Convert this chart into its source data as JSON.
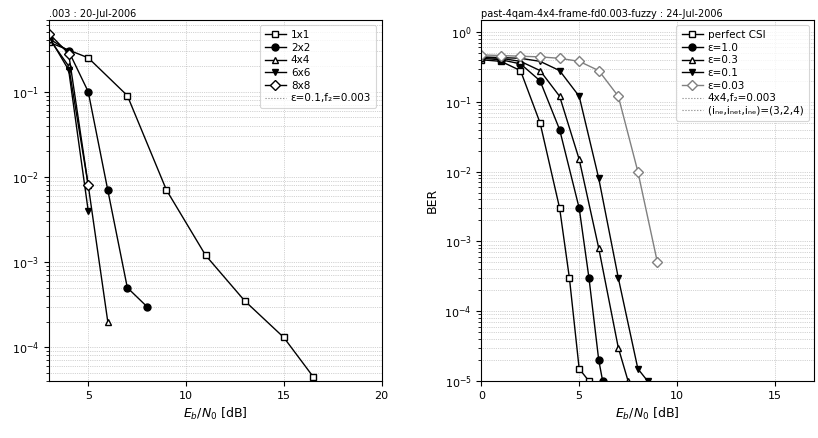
{
  "left_title": ".003 : 20-Jul-2006",
  "right_title": "past-4qam-4x4-frame-fd0.003-fuzzy : 24-Jul-2006",
  "xlabel_left": "$E_b/N_0$ [dB]",
  "xlabel_right": "$E_b/N_0$ [dB]",
  "ylabel": "BER",
  "left_xlim": [
    3,
    20
  ],
  "left_ylim": [
    4e-05,
    0.7
  ],
  "right_xlim": [
    0,
    17
  ],
  "right_ylim": [
    1e-05,
    1.5
  ],
  "left_curves": {
    "1x1": {
      "x": [
        3,
        5,
        7,
        9,
        11,
        13,
        15,
        16.5
      ],
      "y": [
        0.38,
        0.25,
        0.09,
        0.007,
        0.0012,
        0.00035,
        0.00013,
        4.5e-05
      ],
      "marker": "s",
      "fillstyle": "none",
      "linestyle": "-"
    },
    "2x2": {
      "x": [
        3,
        4,
        5,
        6,
        7,
        8
      ],
      "y": [
        0.42,
        0.3,
        0.1,
        0.007,
        0.0005,
        0.0003
      ],
      "marker": "o",
      "fillstyle": "full",
      "linestyle": "-"
    },
    "4x4": {
      "x": [
        3,
        4,
        5,
        6
      ],
      "y": [
        0.42,
        0.2,
        0.008,
        0.0002
      ],
      "marker": "^",
      "fillstyle": "none",
      "linestyle": "-"
    },
    "6x6": {
      "x": [
        3,
        4,
        5
      ],
      "y": [
        0.44,
        0.18,
        0.004
      ],
      "marker": "v",
      "fillstyle": "full",
      "linestyle": "-"
    },
    "8x8": {
      "x": [
        3,
        4,
        5
      ],
      "y": [
        0.48,
        0.28,
        0.008
      ],
      "marker": "D",
      "fillstyle": "none",
      "linestyle": "-"
    }
  },
  "left_legend_extra": "ε=0.1,f₂=0.003",
  "right_curves": {
    "perfect CSI": {
      "x": [
        0,
        1,
        2,
        3,
        4,
        4.5,
        5,
        5.5
      ],
      "y": [
        0.4,
        0.38,
        0.28,
        0.05,
        0.003,
        0.0003,
        1.5e-05,
        1e-05
      ],
      "marker": "s",
      "fillstyle": "none",
      "linestyle": "-",
      "color": "black"
    },
    "e=1.0": {
      "x": [
        0,
        1,
        2,
        3,
        4,
        5,
        5.5,
        6,
        6.2
      ],
      "y": [
        0.42,
        0.4,
        0.35,
        0.2,
        0.04,
        0.003,
        0.0003,
        2e-05,
        1e-05
      ],
      "marker": "o",
      "fillstyle": "full",
      "linestyle": "-",
      "color": "black"
    },
    "e=0.3": {
      "x": [
        0,
        1,
        2,
        3,
        4,
        5,
        6,
        7,
        7.5
      ],
      "y": [
        0.43,
        0.42,
        0.38,
        0.28,
        0.12,
        0.015,
        0.0008,
        3e-05,
        1e-05
      ],
      "marker": "^",
      "fillstyle": "none",
      "linestyle": "-",
      "color": "black"
    },
    "e=0.1": {
      "x": [
        0,
        1,
        2,
        3,
        4,
        5,
        6,
        7,
        8,
        8.5
      ],
      "y": [
        0.44,
        0.43,
        0.42,
        0.38,
        0.28,
        0.12,
        0.008,
        0.0003,
        1.5e-05,
        1e-05
      ],
      "marker": "v",
      "fillstyle": "full",
      "linestyle": "-",
      "color": "black"
    },
    "e=0.03": {
      "x": [
        0,
        1,
        2,
        3,
        4,
        5,
        6,
        7,
        8,
        9
      ],
      "y": [
        0.47,
        0.46,
        0.45,
        0.44,
        0.42,
        0.38,
        0.28,
        0.12,
        0.01,
        0.0005
      ],
      "marker": "D",
      "fillstyle": "none",
      "linestyle": "-",
      "color": "gray"
    }
  },
  "right_legend_extra1": "4x4,f₂=0.003",
  "right_legend_extra2": "(iₙₑ,iₙₑₜ,iₙₑ⁣)=(3,2,4)",
  "title_fontsize": 7,
  "axis_fontsize": 9,
  "legend_fontsize": 7.5,
  "tick_fontsize": 8
}
